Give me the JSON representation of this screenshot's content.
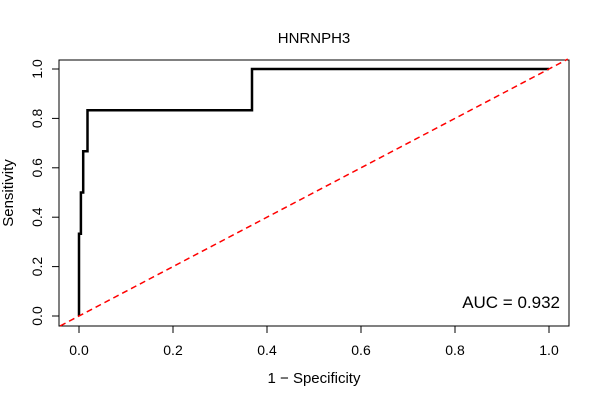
{
  "chart_data": {
    "type": "line",
    "title": "HNRNPH3",
    "xlabel": "1 − Specificity",
    "ylabel": "Sensitivity",
    "xlim": [
      0,
      1
    ],
    "ylim": [
      0,
      1
    ],
    "grid": false,
    "x_ticks": [
      {
        "value": 0,
        "label": "0.0"
      },
      {
        "value": 0.2,
        "label": "0.2"
      },
      {
        "value": 0.4,
        "label": "0.4"
      },
      {
        "value": 0.6,
        "label": "0.6"
      },
      {
        "value": 0.8,
        "label": "0.8"
      },
      {
        "value": 1,
        "label": "1.0"
      }
    ],
    "y_ticks": [
      {
        "value": 0,
        "label": "0.0"
      },
      {
        "value": 0.2,
        "label": "0.2"
      },
      {
        "value": 0.4,
        "label": "0.4"
      },
      {
        "value": 0.6,
        "label": "0.6"
      },
      {
        "value": 0.8,
        "label": "0.8"
      },
      {
        "value": 1,
        "label": "1.0"
      }
    ],
    "series": [
      {
        "kind": "roc-step",
        "color": "#000000",
        "points": [
          [
            0.0,
            0.0
          ],
          [
            0.0,
            0.333
          ],
          [
            0.004,
            0.333
          ],
          [
            0.004,
            0.5
          ],
          [
            0.009,
            0.5
          ],
          [
            0.009,
            0.667
          ],
          [
            0.018,
            0.667
          ],
          [
            0.018,
            0.833
          ],
          [
            0.368,
            0.833
          ],
          [
            0.368,
            1.0
          ],
          [
            1.0,
            1.0
          ]
        ]
      },
      {
        "kind": "reference-diagonal",
        "color": "#ff0000",
        "style": "dashed",
        "points": [
          [
            -0.04,
            -0.04
          ],
          [
            1.04,
            1.04
          ]
        ]
      }
    ],
    "annotations": [
      {
        "text": "AUC = 0.932",
        "placement": "bottom-right"
      }
    ]
  }
}
